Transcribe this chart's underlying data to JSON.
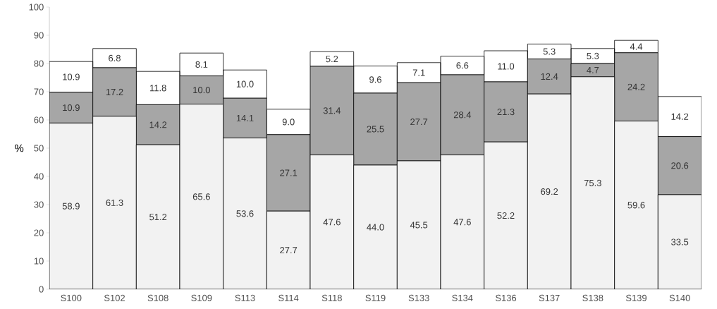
{
  "chart_data": {
    "type": "bar",
    "stacked": true,
    "ylabel": "%",
    "categories": [
      "S100",
      "S102",
      "S108",
      "S109",
      "S113",
      "S114",
      "S118",
      "S119",
      "S133",
      "S134",
      "S136",
      "S137",
      "S138",
      "S139",
      "S140"
    ],
    "series": [
      {
        "color": "#f2f2f2",
        "values": [
          58.9,
          61.3,
          51.2,
          65.6,
          53.6,
          27.7,
          47.6,
          44.0,
          45.5,
          47.6,
          52.2,
          69.2,
          75.3,
          59.6,
          33.5
        ],
        "value_labels": [
          "58.9",
          "61.3",
          "51.2",
          "65.6",
          "53.6",
          "27.7",
          "47.6",
          "44.0",
          "45.5",
          "47.6",
          "52.2",
          "69.2",
          "75.3",
          "59.6",
          "33.5"
        ]
      },
      {
        "color": "#a6a6a6",
        "values": [
          10.9,
          17.2,
          14.2,
          10.0,
          14.1,
          27.1,
          31.4,
          25.5,
          27.7,
          28.4,
          21.3,
          12.4,
          4.7,
          24.2,
          20.6
        ],
        "value_labels": [
          "10.9",
          "17.2",
          "14.2",
          "10.0",
          "14.1",
          "27.1",
          "31.4",
          "25.5",
          "27.7",
          "28.4",
          "21.3",
          "12.4",
          "4.7",
          "24.2",
          "20.6"
        ]
      },
      {
        "color": "#ffffff",
        "values": [
          10.9,
          6.8,
          11.8,
          8.1,
          10.0,
          9.0,
          5.2,
          9.6,
          7.1,
          6.6,
          11.0,
          5.3,
          5.3,
          4.4,
          14.2
        ],
        "value_labels": [
          "10.9",
          "6.8",
          "11.8",
          "8.1",
          "10.0",
          "9.0",
          "5.2",
          "9.6",
          "7.1",
          "6.6",
          "11.0",
          "5.3",
          "5.3",
          "4.4",
          "14.2"
        ]
      }
    ],
    "ylim": [
      0,
      100
    ],
    "yticks": [
      0,
      10,
      20,
      30,
      40,
      50,
      60,
      70,
      80,
      90,
      100
    ],
    "grid": false
  }
}
